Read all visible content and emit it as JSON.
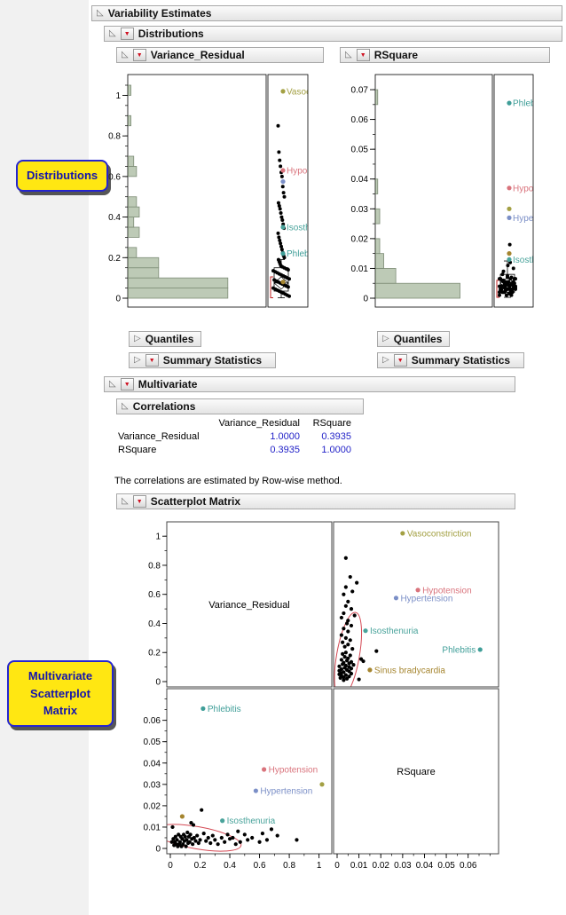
{
  "icons": {
    "expanded": "◺",
    "collapsed": "▷",
    "red_triangle": "▼"
  },
  "callouts": {
    "distributions": "Distributions",
    "multivariate": [
      "Multivariate",
      "Scatterplot",
      "Matrix"
    ]
  },
  "outline": {
    "variability": "Variability Estimates",
    "distributions": "Distributions",
    "variance_residual": "Variance_Residual",
    "rsquare": "RSquare",
    "quantiles": "Quantiles",
    "summary_statistics": "Summary Statistics",
    "multivariate": "Multivariate",
    "correlations": "Correlations",
    "scatterplot_matrix": "Scatterplot Matrix"
  },
  "correlations": {
    "columns": [
      "Variance_Residual",
      "RSquare"
    ],
    "rows": [
      {
        "label": "Variance_Residual",
        "values": [
          "1.0000",
          "0.3935"
        ]
      },
      {
        "label": "RSquare",
        "values": [
          "0.3935",
          "1.0000"
        ]
      }
    ],
    "note": "The correlations are estimated by Row-wise method."
  },
  "chart_data": {
    "type": "multi",
    "hist_fill": "#bdcab6",
    "hist_stroke": "#7d8c76",
    "point_color": "#000000",
    "points_vr_rsq": [
      [
        0.85,
        0.004
      ],
      [
        0.72,
        0.006
      ],
      [
        0.68,
        0.009
      ],
      [
        0.65,
        0.004
      ],
      [
        0.62,
        0.007
      ],
      [
        0.6,
        0.003
      ],
      [
        0.55,
        0.005
      ],
      [
        0.52,
        0.004
      ],
      [
        0.5,
        0.0065
      ],
      [
        0.47,
        0.003
      ],
      [
        0.455,
        0.008
      ],
      [
        0.44,
        0.002
      ],
      [
        0.42,
        0.005
      ],
      [
        0.4,
        0.0045
      ],
      [
        0.385,
        0.0065
      ],
      [
        0.365,
        0.003
      ],
      [
        0.345,
        0.005
      ],
      [
        0.32,
        0.002
      ],
      [
        0.3,
        0.004
      ],
      [
        0.285,
        0.006
      ],
      [
        0.27,
        0.0025
      ],
      [
        0.255,
        0.005
      ],
      [
        0.24,
        0.0035
      ],
      [
        0.225,
        0.007
      ],
      [
        0.21,
        0.018
      ],
      [
        0.2,
        0.004
      ],
      [
        0.19,
        0.0025
      ],
      [
        0.18,
        0.006
      ],
      [
        0.17,
        0.0035
      ],
      [
        0.16,
        0.005
      ],
      [
        0.155,
        0.011
      ],
      [
        0.15,
        0.002
      ],
      [
        0.145,
        0.0045
      ],
      [
        0.14,
        0.012
      ],
      [
        0.135,
        0.0065
      ],
      [
        0.13,
        0.003
      ],
      [
        0.125,
        0.0055
      ],
      [
        0.12,
        0.0025
      ],
      [
        0.115,
        0.0075
      ],
      [
        0.11,
        0.004
      ],
      [
        0.105,
        0.001
      ],
      [
        0.1,
        0.0055
      ],
      [
        0.095,
        0.0035
      ],
      [
        0.09,
        0.0065
      ],
      [
        0.085,
        0.002
      ],
      [
        0.08,
        0.0045
      ],
      [
        0.075,
        0.001
      ],
      [
        0.07,
        0.0055
      ],
      [
        0.065,
        0.003
      ],
      [
        0.06,
        0.002
      ],
      [
        0.055,
        0.0065
      ],
      [
        0.05,
        0.001
      ],
      [
        0.045,
        0.004
      ],
      [
        0.04,
        0.002
      ],
      [
        0.035,
        0.0055
      ],
      [
        0.03,
        0.003
      ],
      [
        0.025,
        0.0015
      ],
      [
        0.02,
        0.0045
      ],
      [
        0.015,
        0.01
      ],
      [
        0.01,
        0.003
      ]
    ],
    "labeled_points": [
      {
        "name": "Vasoconstriction",
        "vr": 1.02,
        "rsq": 0.03,
        "color": "#a3a043",
        "dist_vr_label": true,
        "dist_rs_label": false,
        "tr_side": "right",
        "bl": false
      },
      {
        "name": "Hypotension",
        "vr": 0.63,
        "rsq": 0.037,
        "color": "#d9737c",
        "dist_vr_label": true,
        "dist_rs_label": true,
        "tr_side": "right",
        "bl": true
      },
      {
        "name": "Hypertension",
        "vr": 0.575,
        "rsq": 0.027,
        "color": "#7b8fc7",
        "dist_vr_label": false,
        "dist_rs_label": true,
        "tr_side": "right",
        "bl": true
      },
      {
        "name": "Isosthenuria",
        "vr": 0.35,
        "rsq": 0.013,
        "color": "#49a39b",
        "dist_vr_label": true,
        "dist_rs_label": true,
        "tr_side": "right",
        "bl": true
      },
      {
        "name": "Phlebitis",
        "vr": 0.22,
        "rsq": 0.0655,
        "color": "#3f9e98",
        "dist_vr_label": true,
        "dist_rs_label": true,
        "tr_side": "left",
        "bl": true
      },
      {
        "name": "Sinus bradycardia",
        "vr": 0.08,
        "rsq": 0.015,
        "color": "#a5852f",
        "dist_vr_label": false,
        "dist_rs_label": false,
        "tr_side": "right",
        "bl": false
      }
    ],
    "distributions": [
      {
        "key": 0,
        "title": "Variance_Residual",
        "axis": {
          "min": 0,
          "max": 1.05,
          "ticks": [
            0,
            0.2,
            0.4,
            0.6,
            0.8,
            1
          ],
          "minor": 0.05
        },
        "bins": [
          [
            0,
            0.05,
            36
          ],
          [
            0.05,
            0.1,
            36
          ],
          [
            0.1,
            0.15,
            11
          ],
          [
            0.15,
            0.2,
            11
          ],
          [
            0.2,
            0.25,
            3
          ],
          [
            0.3,
            0.35,
            4
          ],
          [
            0.35,
            0.4,
            2
          ],
          [
            0.4,
            0.45,
            4
          ],
          [
            0.45,
            0.5,
            3
          ],
          [
            0.6,
            0.65,
            3
          ],
          [
            0.65,
            0.7,
            2
          ],
          [
            0.85,
            0.9,
            1
          ],
          [
            1.0,
            1.05,
            1
          ]
        ],
        "box": {
          "q1": 0.035,
          "median": 0.075,
          "q3": 0.15,
          "lo": 0.002,
          "hi": 0.19,
          "diamond": [
            0.045,
            0.105
          ]
        },
        "bracket": [
          0.002,
          0.105
        ]
      },
      {
        "key": 1,
        "title": "RSquare",
        "axis": {
          "min": 0,
          "max": 0.0715,
          "ticks": [
            0,
            0.01,
            0.02,
            0.03,
            0.04,
            0.05,
            0.06,
            0.07
          ],
          "minor": 0.005
        },
        "bins": [
          [
            0,
            0.005,
            42
          ],
          [
            0.005,
            0.01,
            10
          ],
          [
            0.01,
            0.015,
            4
          ],
          [
            0.015,
            0.02,
            2
          ],
          [
            0.025,
            0.03,
            2
          ],
          [
            0.035,
            0.04,
            1
          ],
          [
            0.065,
            0.07,
            1
          ]
        ],
        "box": {
          "q1": 0.002,
          "median": 0.0045,
          "q3": 0.008,
          "lo": 0.0003,
          "hi": 0.0125,
          "diamond": [
            0.003,
            0.007
          ]
        },
        "bracket": [
          0.0003,
          0.006
        ]
      }
    ],
    "scatterplot_matrix": {
      "vars": [
        {
          "label": "Variance_Residual",
          "min": 0,
          "max": 1.05,
          "ticks": [
            0,
            0.2,
            0.4,
            0.6,
            0.8,
            1
          ],
          "minor": 0.1
        },
        {
          "label": "RSquare",
          "min": 0,
          "max": 0.0715,
          "ticks": [
            0,
            0.01,
            0.02,
            0.03,
            0.04,
            0.05,
            0.06
          ],
          "minor": 0.005
        }
      ],
      "ellipse": {
        "center_vr": 0.18,
        "center_rsq": 0.005,
        "r_vr": 0.3,
        "r_rsq": 0.0052,
        "tilt_deg": 10,
        "color": "#d44a55"
      }
    }
  }
}
